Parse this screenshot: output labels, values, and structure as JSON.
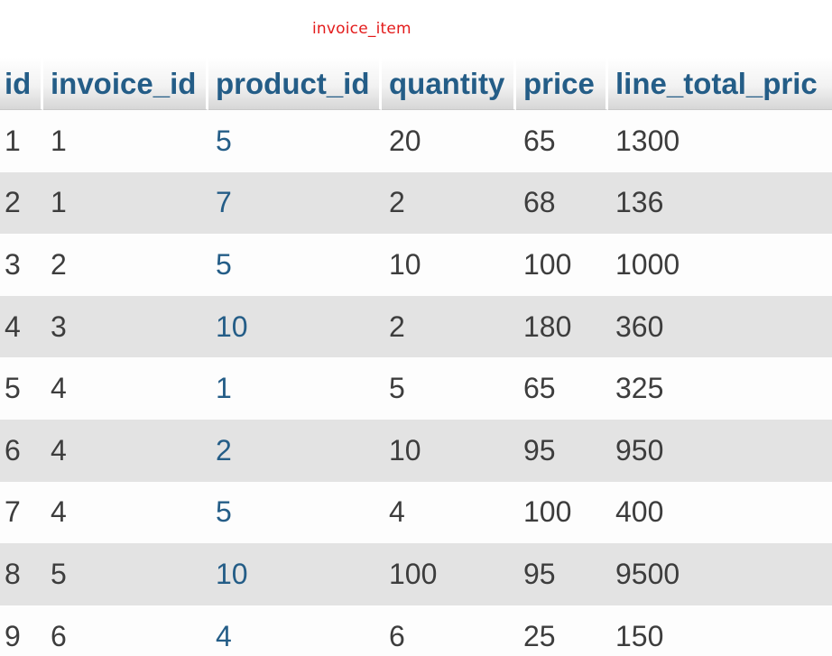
{
  "caption": "invoice_item",
  "table": {
    "columns": [
      "id",
      "invoice_id",
      "product_id",
      "quantity",
      "price",
      "line_total_pric"
    ],
    "rows": [
      [
        "1",
        "1",
        "5",
        "20",
        "65",
        "1300"
      ],
      [
        "2",
        "1",
        "7",
        "2",
        "68",
        "136"
      ],
      [
        "3",
        "2",
        "5",
        "10",
        "100",
        "1000"
      ],
      [
        "4",
        "3",
        "10",
        "2",
        "180",
        "360"
      ],
      [
        "5",
        "4",
        "1",
        "5",
        "65",
        "325"
      ],
      [
        "6",
        "4",
        "2",
        "10",
        "95",
        "950"
      ],
      [
        "7",
        "4",
        "5",
        "4",
        "100",
        "400"
      ],
      [
        "8",
        "5",
        "10",
        "100",
        "95",
        "9500"
      ],
      [
        "9",
        "6",
        "4",
        "6",
        "25",
        "150"
      ]
    ]
  },
  "colors": {
    "header_text": "#245d87",
    "link_text": "#245d87",
    "cell_text": "#3d3d3d",
    "caption_text": "#e31b1b",
    "row_even_bg": "#e3e3e3",
    "row_odd_bg": "#fdfdfd"
  }
}
